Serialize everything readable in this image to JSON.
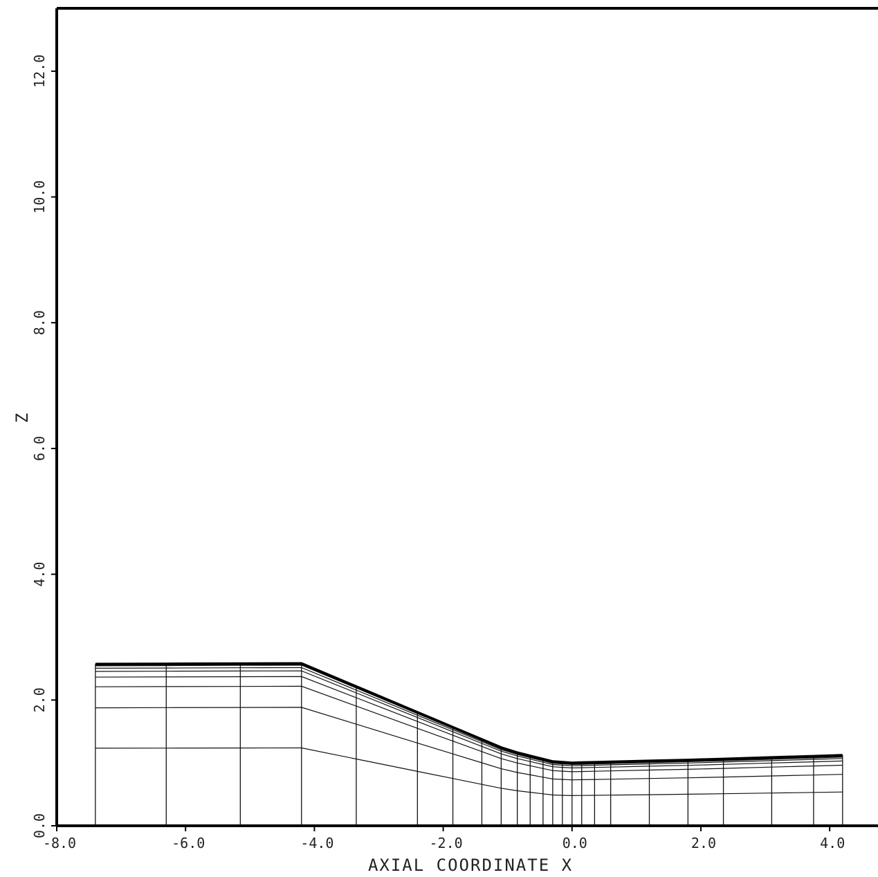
{
  "chart_data": {
    "type": "line",
    "title": "",
    "xlabel": "AXIAL COORDINATE X",
    "ylabel": "Z",
    "xlim": [
      -8.0,
      4.75
    ],
    "ylim": [
      0.0,
      13.0
    ],
    "x_ticks": [
      "-8.0",
      "-6.0",
      "-4.0",
      "-2.0",
      "0.0",
      "2.0",
      "4.0"
    ],
    "y_ticks": [
      "0.0",
      "2.0",
      "4.0",
      "6.0",
      "8.0",
      "10.0",
      "12.0"
    ],
    "grid": false,
    "legend": "none",
    "description_values": {
      "outer_boundary": {
        "x": [
          -7.4,
          -4.2,
          -2.0,
          -1.0,
          -0.3,
          0.0,
          2.0,
          4.2
        ],
        "z": [
          2.57,
          2.58,
          1.63,
          1.2,
          1.02,
          1.0,
          1.05,
          1.12
        ]
      },
      "grid_stations_x": [
        -7.4,
        -6.3,
        -5.15,
        -4.2,
        -3.35,
        -2.4,
        -1.85,
        -1.4,
        -1.1,
        -0.85,
        -0.65,
        -0.45,
        -0.3,
        -0.15,
        0.0,
        0.15,
        0.35,
        0.6,
        1.2,
        1.8,
        2.35,
        3.1,
        3.75,
        4.2
      ],
      "radial_fractions": [
        0.48,
        0.73,
        0.86,
        0.92,
        0.955,
        0.975,
        0.99
      ]
    }
  }
}
